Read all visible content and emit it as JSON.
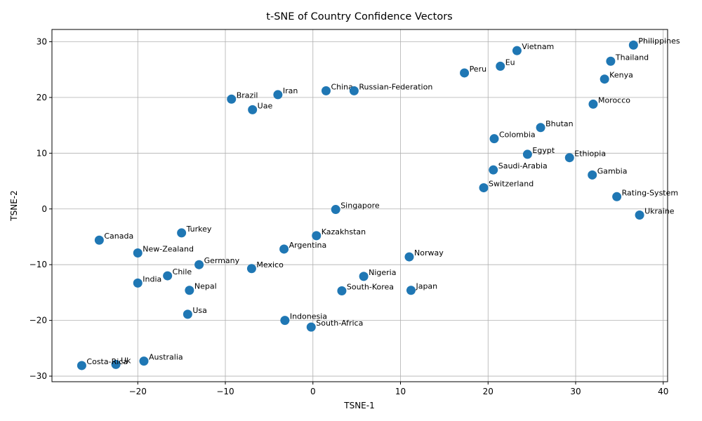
{
  "chart_data": {
    "type": "scatter",
    "title": "t-SNE of Country Confidence Vectors",
    "xlabel": "TSNE-1",
    "ylabel": "TSNE-2",
    "xlim": [
      -29.8,
      40.5
    ],
    "ylim": [
      -31,
      32.2
    ],
    "xticks": [
      -20,
      -10,
      0,
      10,
      20,
      30,
      40
    ],
    "yticks": [
      -30,
      -20,
      -10,
      0,
      10,
      20,
      30
    ],
    "grid": true,
    "marker_color": "#1f77b4",
    "points": [
      {
        "label": "Philippines",
        "x": 36.6,
        "y": 29.4
      },
      {
        "label": "Vietnam",
        "x": 23.3,
        "y": 28.4
      },
      {
        "label": "Thailand",
        "x": 34.0,
        "y": 26.5
      },
      {
        "label": "Eu",
        "x": 21.4,
        "y": 25.6
      },
      {
        "label": "Peru",
        "x": 17.3,
        "y": 24.4
      },
      {
        "label": "Kenya",
        "x": 33.3,
        "y": 23.3
      },
      {
        "label": "China",
        "x": 1.5,
        "y": 21.2
      },
      {
        "label": "Russian-Federation",
        "x": 4.7,
        "y": 21.2
      },
      {
        "label": "Iran",
        "x": -4.0,
        "y": 20.5
      },
      {
        "label": "Brazil",
        "x": -9.3,
        "y": 19.7
      },
      {
        "label": "Morocco",
        "x": 32.0,
        "y": 18.8
      },
      {
        "label": "Uae",
        "x": -6.9,
        "y": 17.8
      },
      {
        "label": "Bhutan",
        "x": 26.0,
        "y": 14.6
      },
      {
        "label": "Colombia",
        "x": 20.7,
        "y": 12.6
      },
      {
        "label": "Egypt",
        "x": 24.5,
        "y": 9.8
      },
      {
        "label": "Ethiopia",
        "x": 29.3,
        "y": 9.2
      },
      {
        "label": "Saudi-Arabia",
        "x": 20.6,
        "y": 7.0
      },
      {
        "label": "Gambia",
        "x": 31.9,
        "y": 6.1
      },
      {
        "label": "Switzerland",
        "x": 19.5,
        "y": 3.8
      },
      {
        "label": "Rating-System",
        "x": 34.7,
        "y": 2.2
      },
      {
        "label": "Singapore",
        "x": 2.6,
        "y": -0.1
      },
      {
        "label": "Ukraine",
        "x": 37.3,
        "y": -1.1
      },
      {
        "label": "Turkey",
        "x": -15.0,
        "y": -4.3
      },
      {
        "label": "Kazakhstan",
        "x": 0.4,
        "y": -4.8
      },
      {
        "label": "Canada",
        "x": -24.4,
        "y": -5.6
      },
      {
        "label": "Argentina",
        "x": -3.3,
        "y": -7.2
      },
      {
        "label": "New-Zealand",
        "x": -20.0,
        "y": -7.9
      },
      {
        "label": "Norway",
        "x": 11.0,
        "y": -8.6
      },
      {
        "label": "Germany",
        "x": -13.0,
        "y": -10.0
      },
      {
        "label": "Mexico",
        "x": -7.0,
        "y": -10.7
      },
      {
        "label": "Chile",
        "x": -16.6,
        "y": -12.0
      },
      {
        "label": "Nigeria",
        "x": 5.8,
        "y": -12.1
      },
      {
        "label": "India",
        "x": -20.0,
        "y": -13.3
      },
      {
        "label": "Nepal",
        "x": -14.1,
        "y": -14.6
      },
      {
        "label": "South-Korea",
        "x": 3.3,
        "y": -14.7
      },
      {
        "label": "Japan",
        "x": 11.2,
        "y": -14.6
      },
      {
        "label": "Usa",
        "x": -14.3,
        "y": -18.9
      },
      {
        "label": "Indonesia",
        "x": -3.2,
        "y": -20.0
      },
      {
        "label": "South-Africa",
        "x": -0.2,
        "y": -21.2
      },
      {
        "label": "Australia",
        "x": -19.3,
        "y": -27.3
      },
      {
        "label": "Uk",
        "x": -22.5,
        "y": -27.9
      },
      {
        "label": "Costa-Rica",
        "x": -26.4,
        "y": -28.1
      }
    ]
  }
}
